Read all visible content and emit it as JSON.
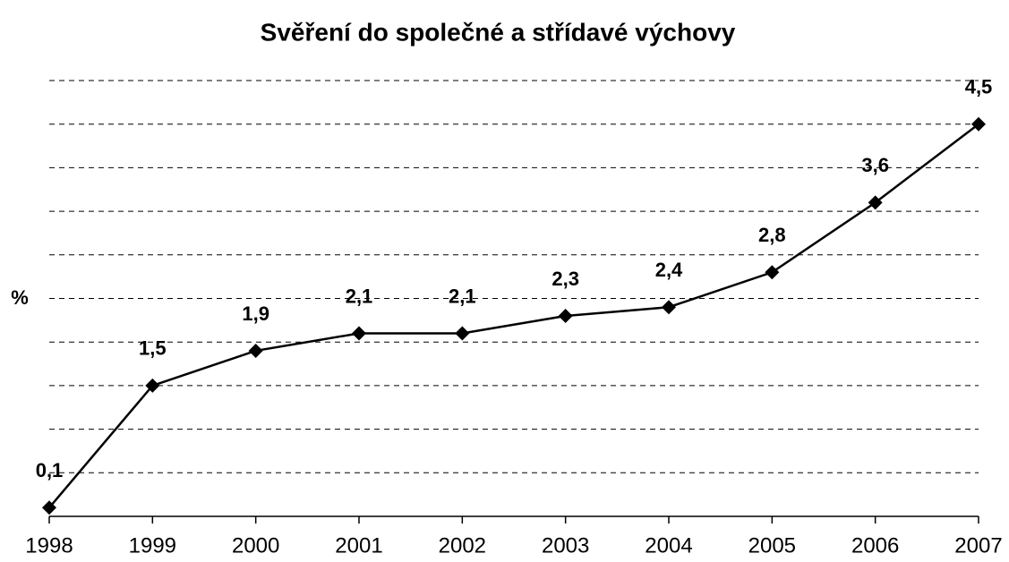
{
  "chart_data": {
    "type": "line",
    "title": "Svěření do společné a střídavé výchovy",
    "y_label": "%",
    "categories": [
      "1998",
      "1999",
      "2000",
      "2001",
      "2002",
      "2003",
      "2004",
      "2005",
      "2006",
      "2007"
    ],
    "series": [
      {
        "name": null,
        "color": "#000000",
        "values": [
          0.1,
          1.5,
          1.9,
          2.1,
          2.1,
          2.3,
          2.4,
          2.8,
          3.6,
          4.5
        ],
        "value_labels": [
          "0,1",
          "1,5",
          "1,9",
          "2,1",
          "2,1",
          "2,3",
          "2,4",
          "2,8",
          "3,6",
          "4,5"
        ]
      }
    ],
    "ylim": [
      0,
      5
    ],
    "yticks": [
      0,
      0.5,
      1,
      1.5,
      2,
      2.5,
      3,
      3.5,
      4,
      4.5,
      5
    ],
    "grid": true
  }
}
